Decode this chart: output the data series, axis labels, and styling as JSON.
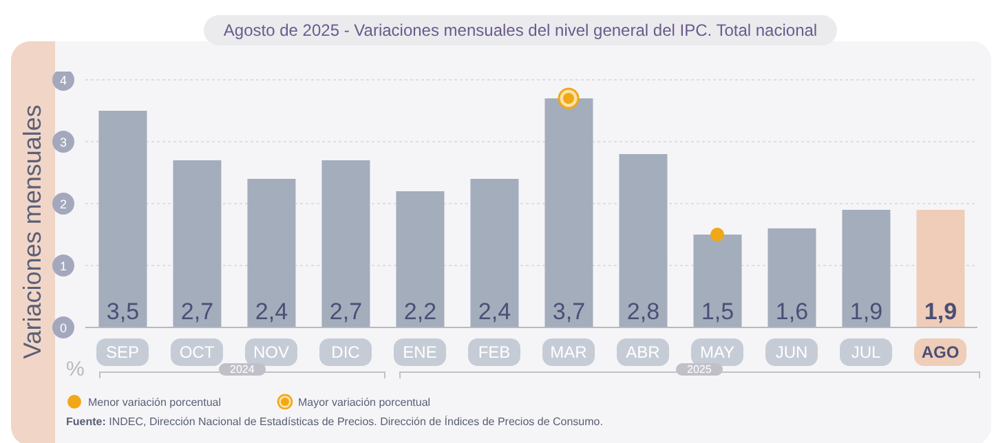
{
  "chart_data": {
    "type": "bar",
    "title": "Agosto de 2025 - Variaciones mensuales del nivel general del IPC. Total nacional",
    "ylabel": "Variaciones mensuales",
    "categories": [
      "SEP",
      "OCT",
      "NOV",
      "DIC",
      "ENE",
      "FEB",
      "MAR",
      "ABR",
      "MAY",
      "JUN",
      "JUL",
      "AGO"
    ],
    "values": [
      3.5,
      2.7,
      2.4,
      2.7,
      2.2,
      2.4,
      3.7,
      2.8,
      1.5,
      1.6,
      1.9,
      1.9
    ],
    "value_labels": [
      "3,5",
      "2,7",
      "2,4",
      "2,7",
      "2,2",
      "2,4",
      "3,7",
      "2,8",
      "1,5",
      "1,6",
      "1,9",
      "1,9"
    ],
    "colors": [
      "#a3adbc",
      "#a3adbc",
      "#a3adbc",
      "#a3adbc",
      "#a3adbc",
      "#a3adbc",
      "#a3adbc",
      "#a3adbc",
      "#a3adbc",
      "#a3adbc",
      "#a3adbc",
      "#efcdb8"
    ],
    "series": [
      {
        "type": "scatter",
        "name": "Menor variación porcentual",
        "color": "#f0a818",
        "x": [
          "MAY"
        ],
        "values": [
          1.5
        ],
        "marker": "circle"
      },
      {
        "type": "scatter",
        "name": "Mayor variación porcentual",
        "color": "#f0a818",
        "x": [
          "MAR"
        ],
        "values": [
          3.7
        ],
        "marker": "circle"
      }
    ],
    "ylim": [
      0,
      4
    ],
    "yticks": [
      0,
      1,
      2,
      3,
      4
    ],
    "grid": "y",
    "legend": "bottom left",
    "annotations": [
      "%",
      "2024",
      "2025",
      "Fuente: INDEC, Dirección Nacional de Estadísticas de Precios. Dirección de Índices de Precios de Consumo."
    ]
  }
}
